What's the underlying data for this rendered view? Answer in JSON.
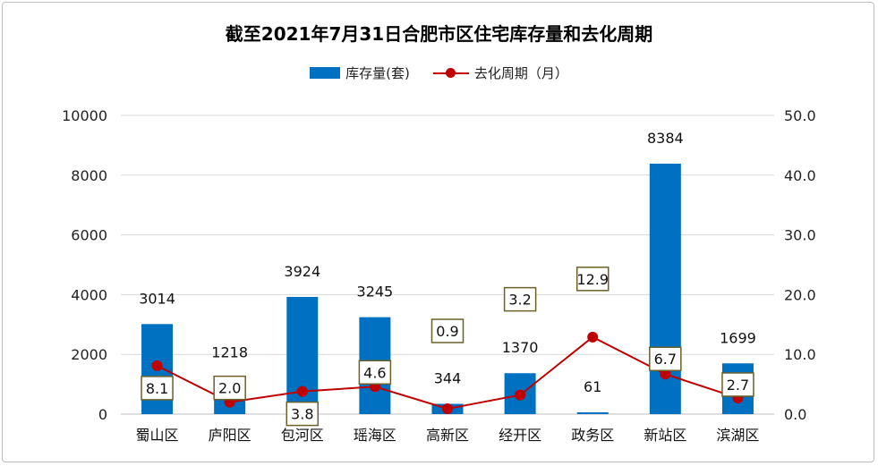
{
  "chart_data": {
    "type": "bar",
    "title": "截至2021年7月31日合肥市区住宅库存量和去化周期",
    "categories": [
      "蜀山区",
      "庐阳区",
      "包河区",
      "瑶海区",
      "高新区",
      "经开区",
      "政务区",
      "新站区",
      "滨湖区"
    ],
    "series": [
      {
        "name": "库存量(套)",
        "type": "bar",
        "axis": "left",
        "color": "#0070c0",
        "values": [
          3014,
          1218,
          3924,
          3245,
          344,
          1370,
          61,
          8384,
          1699
        ],
        "labels": [
          "3014",
          "1218",
          "3924",
          "3245",
          "344",
          "1370",
          "61",
          "8384",
          "1699"
        ]
      },
      {
        "name": "去化周期（月）",
        "type": "line",
        "axis": "right",
        "color": "#c00000",
        "values": [
          8.1,
          2.0,
          3.8,
          4.6,
          0.9,
          3.2,
          12.9,
          6.7,
          2.7
        ],
        "labels": [
          "8.1",
          "2.0",
          "3.8",
          "4.6",
          "0.9",
          "3.2",
          "12.9",
          "6.7",
          "2.7"
        ]
      }
    ],
    "y_left": {
      "min": 0,
      "max": 10000,
      "ticks": [
        "0",
        "2000",
        "4000",
        "6000",
        "8000",
        "10000"
      ]
    },
    "y_right": {
      "min": 0,
      "max": 50,
      "ticks": [
        "0.0",
        "10.0",
        "20.0",
        "30.0",
        "40.0",
        "50.0"
      ]
    },
    "grid": true,
    "legend_position": "top-center"
  }
}
